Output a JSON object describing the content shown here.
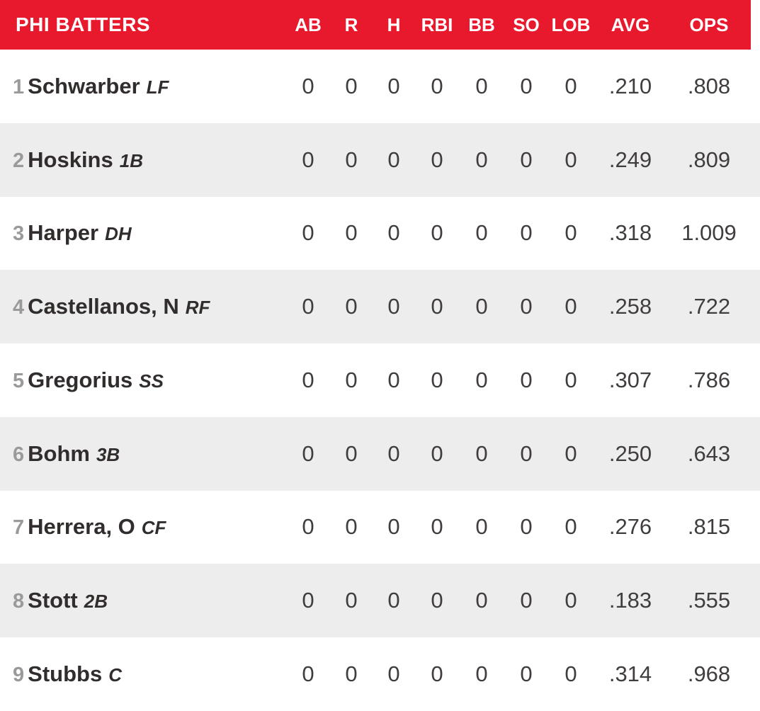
{
  "header": {
    "title": "PHI BATTERS",
    "columns": [
      "AB",
      "R",
      "H",
      "RBI",
      "BB",
      "SO",
      "LOB",
      "AVG",
      "OPS"
    ]
  },
  "rows": [
    {
      "order": "1",
      "name": "Schwarber",
      "pos": "LF",
      "ab": "0",
      "r": "0",
      "h": "0",
      "rbi": "0",
      "bb": "0",
      "so": "0",
      "lob": "0",
      "avg": ".210",
      "ops": ".808"
    },
    {
      "order": "2",
      "name": "Hoskins",
      "pos": "1B",
      "ab": "0",
      "r": "0",
      "h": "0",
      "rbi": "0",
      "bb": "0",
      "so": "0",
      "lob": "0",
      "avg": ".249",
      "ops": ".809"
    },
    {
      "order": "3",
      "name": "Harper",
      "pos": "DH",
      "ab": "0",
      "r": "0",
      "h": "0",
      "rbi": "0",
      "bb": "0",
      "so": "0",
      "lob": "0",
      "avg": ".318",
      "ops": "1.009"
    },
    {
      "order": "4",
      "name": "Castellanos, N",
      "pos": "RF",
      "ab": "0",
      "r": "0",
      "h": "0",
      "rbi": "0",
      "bb": "0",
      "so": "0",
      "lob": "0",
      "avg": ".258",
      "ops": ".722"
    },
    {
      "order": "5",
      "name": "Gregorius",
      "pos": "SS",
      "ab": "0",
      "r": "0",
      "h": "0",
      "rbi": "0",
      "bb": "0",
      "so": "0",
      "lob": "0",
      "avg": ".307",
      "ops": ".786"
    },
    {
      "order": "6",
      "name": "Bohm",
      "pos": "3B",
      "ab": "0",
      "r": "0",
      "h": "0",
      "rbi": "0",
      "bb": "0",
      "so": "0",
      "lob": "0",
      "avg": ".250",
      "ops": ".643"
    },
    {
      "order": "7",
      "name": "Herrera, O",
      "pos": "CF",
      "ab": "0",
      "r": "0",
      "h": "0",
      "rbi": "0",
      "bb": "0",
      "so": "0",
      "lob": "0",
      "avg": ".276",
      "ops": ".815"
    },
    {
      "order": "8",
      "name": "Stott",
      "pos": "2B",
      "ab": "0",
      "r": "0",
      "h": "0",
      "rbi": "0",
      "bb": "0",
      "so": "0",
      "lob": "0",
      "avg": ".183",
      "ops": ".555"
    },
    {
      "order": "9",
      "name": "Stubbs",
      "pos": "C",
      "ab": "0",
      "r": "0",
      "h": "0",
      "rbi": "0",
      "bb": "0",
      "so": "0",
      "lob": "0",
      "avg": ".314",
      "ops": ".968"
    }
  ],
  "colors": {
    "header_bg": "#e8192c",
    "row_alt_bg": "#ededed",
    "header_text": "#ffffff",
    "name_text": "#322d2d",
    "stat_text": "#413d3d",
    "order_text": "#9a9a9a"
  }
}
